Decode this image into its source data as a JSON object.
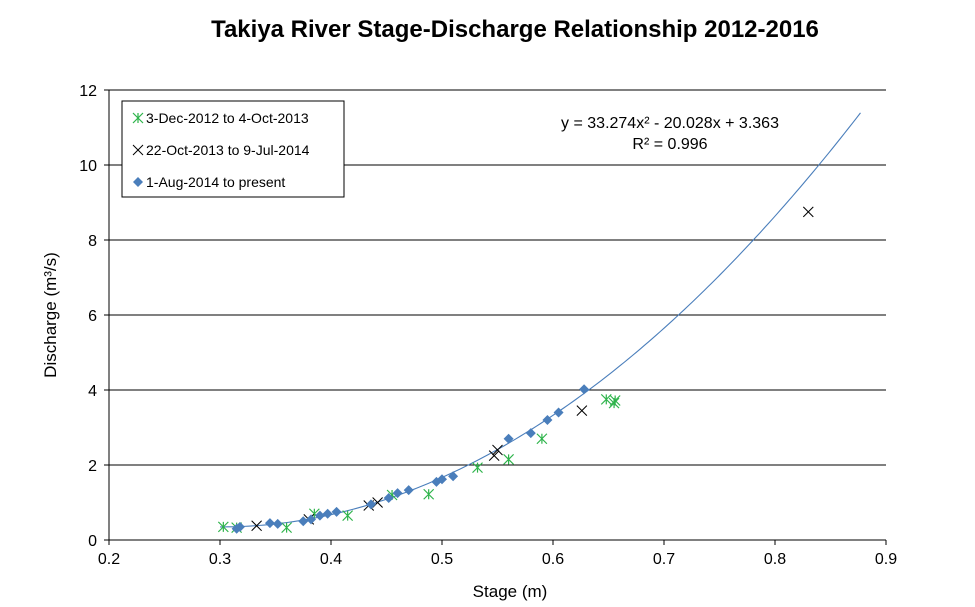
{
  "chart_data": {
    "type": "scatter",
    "title": "Takiya River Stage-Discharge Relationship 2012-2016",
    "xlabel": "Stage (m)",
    "ylabel": "Discharge (m³/s)",
    "xlim": [
      0.2,
      0.9
    ],
    "ylim": [
      0,
      12
    ],
    "x_ticks": [
      "0.2",
      "0.3",
      "0.4",
      "0.5",
      "0.6",
      "0.7",
      "0.8",
      "0.9"
    ],
    "y_ticks": [
      "0",
      "2",
      "4",
      "6",
      "8",
      "10",
      "12"
    ],
    "grid": "horizontal",
    "legend_position": "top-left",
    "series": [
      {
        "name": "3-Dec-2012 to 4-Oct-2013",
        "marker": "asterisk",
        "color": "#2db34a",
        "points": [
          [
            0.303,
            0.35
          ],
          [
            0.315,
            0.33
          ],
          [
            0.36,
            0.33
          ],
          [
            0.385,
            0.7
          ],
          [
            0.415,
            0.65
          ],
          [
            0.455,
            1.2
          ],
          [
            0.488,
            1.22
          ],
          [
            0.532,
            1.93
          ],
          [
            0.56,
            2.15
          ],
          [
            0.59,
            2.7
          ],
          [
            0.648,
            3.75
          ],
          [
            0.655,
            3.65
          ],
          [
            0.656,
            3.72
          ]
        ]
      },
      {
        "name": "22-Oct-2013 to 9-Jul-2014",
        "marker": "x",
        "color": "#000000",
        "points": [
          [
            0.333,
            0.38
          ],
          [
            0.38,
            0.55
          ],
          [
            0.434,
            0.92
          ],
          [
            0.442,
            1.0
          ],
          [
            0.547,
            2.25
          ],
          [
            0.55,
            2.4
          ],
          [
            0.626,
            3.45
          ],
          [
            0.83,
            8.75
          ]
        ]
      },
      {
        "name": "1-Aug-2014 to present",
        "marker": "diamond",
        "color": "#4a7ebb",
        "points": [
          [
            0.315,
            0.3
          ],
          [
            0.318,
            0.35
          ],
          [
            0.345,
            0.45
          ],
          [
            0.352,
            0.43
          ],
          [
            0.375,
            0.5
          ],
          [
            0.382,
            0.55
          ],
          [
            0.39,
            0.65
          ],
          [
            0.397,
            0.7
          ],
          [
            0.405,
            0.75
          ],
          [
            0.436,
            0.95
          ],
          [
            0.452,
            1.12
          ],
          [
            0.46,
            1.25
          ],
          [
            0.47,
            1.33
          ],
          [
            0.495,
            1.55
          ],
          [
            0.5,
            1.62
          ],
          [
            0.51,
            1.7
          ],
          [
            0.56,
            2.7
          ],
          [
            0.58,
            2.85
          ],
          [
            0.595,
            3.2
          ],
          [
            0.605,
            3.4
          ],
          [
            0.628,
            4.02
          ]
        ]
      }
    ],
    "trendline": {
      "type": "polynomial",
      "coefficients": [
        33.274,
        -20.028,
        3.363
      ],
      "x_range": [
        0.3,
        0.877
      ],
      "color": "#4a7ebb",
      "equation": "y = 33.274x² - 20.028x + 3.363",
      "r2": "R² = 0.996"
    }
  }
}
